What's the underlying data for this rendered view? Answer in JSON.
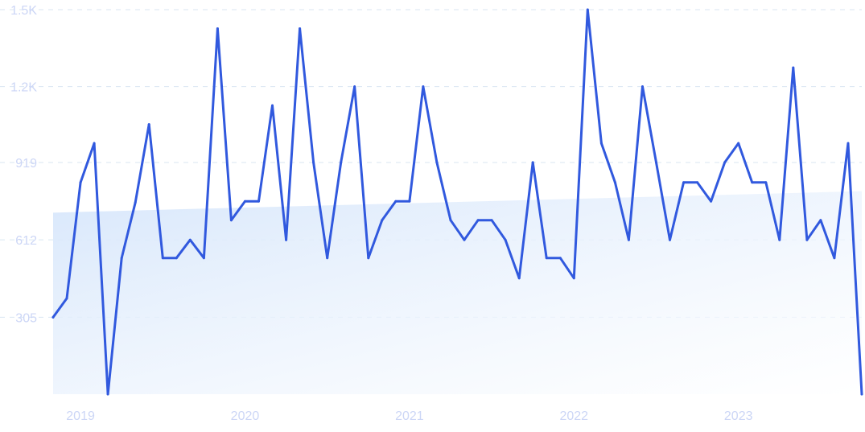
{
  "chart_data": {
    "type": "line",
    "title": "",
    "xlabel": "",
    "ylabel": "",
    "ylim": [
      0,
      1525
    ],
    "y_ticks": [
      {
        "value": 305,
        "label": "305"
      },
      {
        "value": 612,
        "label": "612"
      },
      {
        "value": 919,
        "label": "919"
      },
      {
        "value": 1220,
        "label": "1.2K"
      },
      {
        "value": 1525,
        "label": "1.5K"
      }
    ],
    "x_range": [
      "2018-11",
      "2023-10"
    ],
    "x_ticks": [
      {
        "x": "2019-01",
        "label": "2019"
      },
      {
        "x": "2020-01",
        "label": "2020"
      },
      {
        "x": "2021-01",
        "label": "2021"
      },
      {
        "x": "2022-01",
        "label": "2022"
      },
      {
        "x": "2023-01",
        "label": "2023"
      }
    ],
    "grid": true,
    "x": [
      "2018-11",
      "2018-12",
      "2019-01",
      "2019-02",
      "2019-03",
      "2019-04",
      "2019-05",
      "2019-06",
      "2019-07",
      "2019-08",
      "2019-09",
      "2019-10",
      "2019-11",
      "2019-12",
      "2020-01",
      "2020-02",
      "2020-03",
      "2020-04",
      "2020-05",
      "2020-06",
      "2020-07",
      "2020-08",
      "2020-09",
      "2020-10",
      "2020-11",
      "2020-12",
      "2021-01",
      "2021-02",
      "2021-03",
      "2021-04",
      "2021-05",
      "2021-06",
      "2021-07",
      "2021-08",
      "2021-09",
      "2021-10",
      "2021-11",
      "2021-12",
      "2022-01",
      "2022-02",
      "2022-03",
      "2022-04",
      "2022-05",
      "2022-06",
      "2022-07",
      "2022-08",
      "2022-09",
      "2022-10",
      "2022-11",
      "2022-12",
      "2023-01",
      "2023-02",
      "2023-03",
      "2023-04",
      "2023-05",
      "2023-06",
      "2023-07",
      "2023-08",
      "2023-09",
      "2023-10"
    ],
    "series": [
      {
        "name": "",
        "color": "#3159de",
        "values": [
          305,
          380,
          840,
          995,
          0,
          540,
          760,
          1070,
          540,
          540,
          612,
          540,
          1450,
          690,
          765,
          765,
          1145,
          612,
          1450,
          919,
          540,
          919,
          1220,
          540,
          690,
          765,
          765,
          1220,
          919,
          690,
          612,
          690,
          690,
          612,
          460,
          919,
          540,
          540,
          460,
          1525,
          995,
          840,
          612,
          1220,
          919,
          612,
          840,
          840,
          765,
          919,
          995,
          840,
          840,
          612,
          1295,
          612,
          690,
          540,
          995,
          0
        ]
      }
    ],
    "trend_area": {
      "color": "#d6e6fb",
      "start": 720,
      "end": 805
    }
  }
}
